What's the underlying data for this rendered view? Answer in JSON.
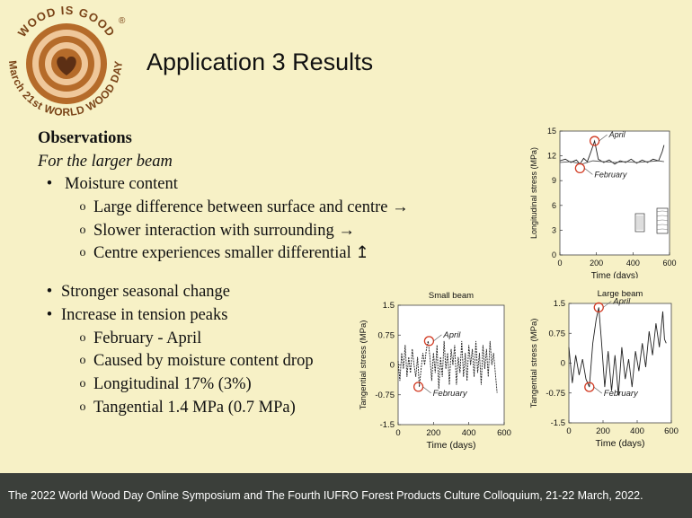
{
  "logo": {
    "ring_text_top": "WOOD IS GOOD",
    "ring_text_bottom": "March 21st WORLD WOOD DAY",
    "registered": "®",
    "colors": {
      "rings": "#b56b2a",
      "light": "#efc79a",
      "heart": "#5c2f14",
      "text": "#6b3a16"
    }
  },
  "title": "Application 3 Results",
  "observations": {
    "heading": "Observations",
    "subheading": "For the larger beam",
    "moisture": {
      "label": "Moisture content",
      "items": [
        "Large difference between surface and centre →",
        "Slower interaction with surrounding →",
        "Centre experiences smaller differential ↥"
      ]
    },
    "seasonal": "Stronger seasonal change",
    "tension": {
      "label": "Increase in tension peaks",
      "items": [
        "February - April",
        "Caused by moisture content drop",
        "Longitudinal 17% (3%)",
        "Tangential 1.4 MPa (0.7 MPa)"
      ]
    },
    "bullet_glyph": "•",
    "sub_bullet_glyph": "o"
  },
  "chart_data": [
    {
      "type": "line",
      "title": "",
      "xlabel": "Time (days)",
      "ylabel": "Longitudinal stress (MPa)",
      "xlim": [
        0,
        600
      ],
      "ylim": [
        0,
        15
      ],
      "xticks": [
        "0",
        "200",
        "400",
        "600"
      ],
      "yticks": [
        "0",
        "3",
        "6",
        "9",
        "12",
        "15"
      ],
      "annotations": [
        {
          "text": "April",
          "x": 190,
          "y": 13.8
        },
        {
          "text": "February",
          "x": 110,
          "y": 10.5
        }
      ],
      "series": [
        {
          "x": [
            0,
            30,
            60,
            90,
            110,
            130,
            150,
            170,
            190,
            210,
            240,
            270,
            300,
            330,
            360,
            390,
            420,
            450,
            480,
            510,
            540,
            560,
            570
          ],
          "values": [
            11.4,
            11.6,
            11.2,
            11.5,
            11.0,
            11.7,
            11.3,
            12.5,
            13.8,
            11.6,
            11.2,
            11.5,
            11.0,
            11.4,
            11.2,
            11.6,
            11.1,
            11.5,
            11.2,
            11.6,
            11.4,
            12.5,
            13.3
          ]
        },
        {
          "x": [
            0,
            60,
            120,
            180,
            240,
            300,
            360,
            420,
            480,
            540,
            570
          ],
          "values": [
            11.2,
            11.3,
            11.0,
            11.4,
            11.3,
            11.2,
            11.3,
            11.2,
            11.3,
            11.4,
            11.3
          ]
        }
      ]
    },
    {
      "type": "line",
      "title": "Small beam",
      "xlabel": "Time (days)",
      "ylabel": "Tangential stress (MPa)",
      "xlim": [
        0,
        600
      ],
      "ylim": [
        -1.5,
        1.5
      ],
      "xticks": [
        "0",
        "200",
        "400",
        "600"
      ],
      "yticks": [
        "-1.5",
        "-0.75",
        "0",
        "0.75",
        "1.5"
      ],
      "annotations": [
        {
          "text": "April",
          "x": 175,
          "y": 0.6
        },
        {
          "text": "February",
          "x": 115,
          "y": -0.55
        }
      ],
      "series": [
        {
          "x": [
            0,
            10,
            20,
            30,
            40,
            50,
            60,
            70,
            80,
            90,
            100,
            110,
            120,
            130,
            140,
            150,
            160,
            170,
            180,
            190,
            200,
            210,
            220,
            230,
            240,
            250,
            260,
            270,
            280,
            290,
            300,
            310,
            320,
            330,
            340,
            350,
            360,
            370,
            380,
            390,
            400,
            410,
            420,
            430,
            440,
            450,
            460,
            470,
            480,
            490,
            500,
            510,
            520,
            530,
            540,
            550,
            560
          ],
          "values": [
            0.1,
            -0.4,
            0.3,
            -0.1,
            0.5,
            -0.3,
            0.2,
            -0.2,
            0.4,
            0.0,
            -0.3,
            0.2,
            -0.55,
            -0.1,
            0.3,
            0.0,
            0.4,
            0.6,
            0.2,
            -0.4,
            0.3,
            -0.2,
            0.5,
            -0.6,
            0.2,
            -0.3,
            0.6,
            -0.1,
            0.3,
            -0.5,
            0.4,
            0.0,
            0.5,
            -0.5,
            0.2,
            -0.2,
            0.6,
            -0.3,
            0.3,
            -0.4,
            0.5,
            0.0,
            0.4,
            -0.3,
            0.6,
            -0.2,
            0.3,
            -0.5,
            0.5,
            -0.1,
            0.4,
            -0.3,
            0.6,
            0.0,
            0.3,
            -0.2,
            -0.7
          ]
        }
      ]
    },
    {
      "type": "line",
      "title": "Large beam",
      "xlabel": "Time (days)",
      "ylabel": "Tangential stress (MPa)",
      "xlim": [
        0,
        600
      ],
      "ylim": [
        -1.5,
        1.5
      ],
      "xticks": [
        "0",
        "200",
        "400",
        "600"
      ],
      "yticks": [
        "-1.5",
        "-0.75",
        "0",
        "0.75",
        "1.5"
      ],
      "annotations": [
        {
          "text": "April",
          "x": 175,
          "y": 1.4
        },
        {
          "text": "February",
          "x": 120,
          "y": -0.6
        }
      ],
      "series": [
        {
          "x": [
            0,
            20,
            40,
            60,
            80,
            100,
            120,
            140,
            160,
            175,
            190,
            210,
            230,
            250,
            270,
            290,
            310,
            330,
            350,
            370,
            390,
            410,
            430,
            450,
            470,
            490,
            510,
            530,
            550,
            560,
            570
          ],
          "values": [
            0.4,
            -0.5,
            0.2,
            -0.3,
            0.1,
            -0.4,
            -0.6,
            0.5,
            1.1,
            1.4,
            0.6,
            -0.6,
            0.3,
            -0.7,
            0.2,
            -0.8,
            0.4,
            -0.4,
            0.1,
            -0.6,
            0.3,
            -0.2,
            0.5,
            -0.1,
            0.8,
            0.2,
            1.0,
            0.4,
            1.3,
            0.6,
            0.5
          ]
        }
      ]
    }
  ],
  "footer": "The 2022 World Wood Day Online Symposium and The Fourth IUFRO Forest Products Culture Colloquium, 21-22 March, 2022."
}
